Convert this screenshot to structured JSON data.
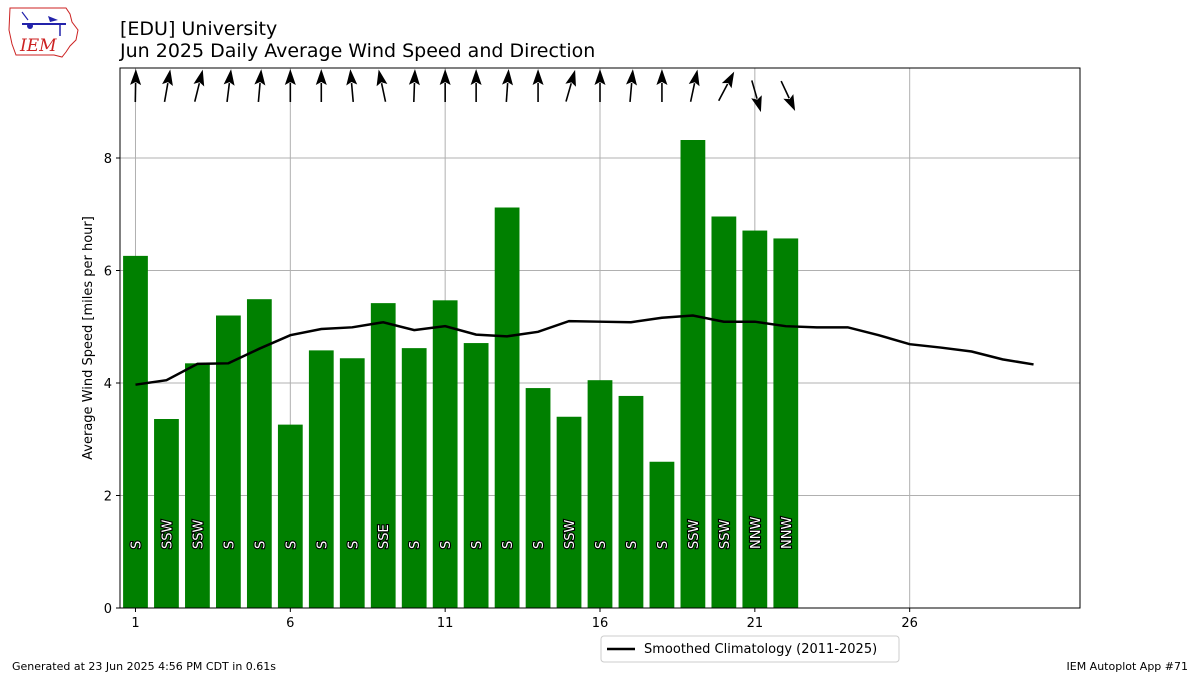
{
  "chart_data": {
    "type": "bar",
    "title": "[EDU] University",
    "subtitle": "Jun 2025 Daily Average Wind Speed and Direction",
    "ylabel": "Average Wind Speed [miles per hour]",
    "xlabel": "",
    "ylim": [
      0,
      9.6
    ],
    "xlim": [
      0.5,
      31.5
    ],
    "x_ticks": [
      1,
      6,
      11,
      16,
      21,
      26
    ],
    "y_ticks": [
      0,
      2,
      4,
      6,
      8
    ],
    "grid": true,
    "bar_color": "#008000",
    "days": [
      1,
      2,
      3,
      4,
      5,
      6,
      7,
      8,
      9,
      10,
      11,
      12,
      13,
      14,
      15,
      16,
      17,
      18,
      19,
      20,
      21,
      22
    ],
    "values": [
      6.26,
      3.36,
      4.35,
      5.2,
      5.49,
      3.26,
      4.58,
      4.44,
      5.42,
      4.62,
      5.47,
      4.71,
      7.12,
      3.91,
      3.4,
      4.05,
      3.77,
      2.6,
      8.32,
      6.96,
      6.71,
      6.57
    ],
    "directions": [
      "S",
      "SSW",
      "SSW",
      "S",
      "S",
      "S",
      "S",
      "S",
      "SSE",
      "S",
      "S",
      "S",
      "S",
      "S",
      "SSW",
      "S",
      "S",
      "S",
      "SSW",
      "SSW",
      "NNW",
      "NNW"
    ],
    "arrow_degrees": [
      181,
      190,
      194,
      187,
      185,
      180,
      180,
      175,
      168,
      182,
      180,
      180,
      184,
      180,
      196,
      180,
      185,
      180,
      192,
      208,
      344,
      335
    ],
    "series": [
      {
        "name": "Smoothed Climatology (2011-2025)",
        "color": "#000000",
        "x": [
          1,
          2,
          3,
          4,
          5,
          6,
          7,
          8,
          9,
          10,
          11,
          12,
          13,
          14,
          15,
          16,
          17,
          18,
          19,
          20,
          21,
          22,
          23,
          24,
          25,
          26,
          27,
          28,
          29,
          30
        ],
        "values": [
          3.97,
          4.05,
          4.34,
          4.35,
          4.61,
          4.85,
          4.96,
          4.99,
          5.08,
          4.94,
          5.01,
          4.86,
          4.83,
          4.91,
          5.1,
          5.09,
          5.08,
          5.16,
          5.2,
          5.09,
          5.09,
          5.01,
          4.99,
          4.99,
          4.85,
          4.69,
          4.63,
          4.56,
          4.42,
          4.33
        ]
      }
    ],
    "legend_position": "bottom-center"
  },
  "footer": {
    "left": "Generated at 23 Jun 2025 4:56 PM CDT in 0.61s",
    "right": "IEM Autoplot App #71"
  },
  "logo": {
    "text": "IEM",
    "color": "#cc2222"
  }
}
